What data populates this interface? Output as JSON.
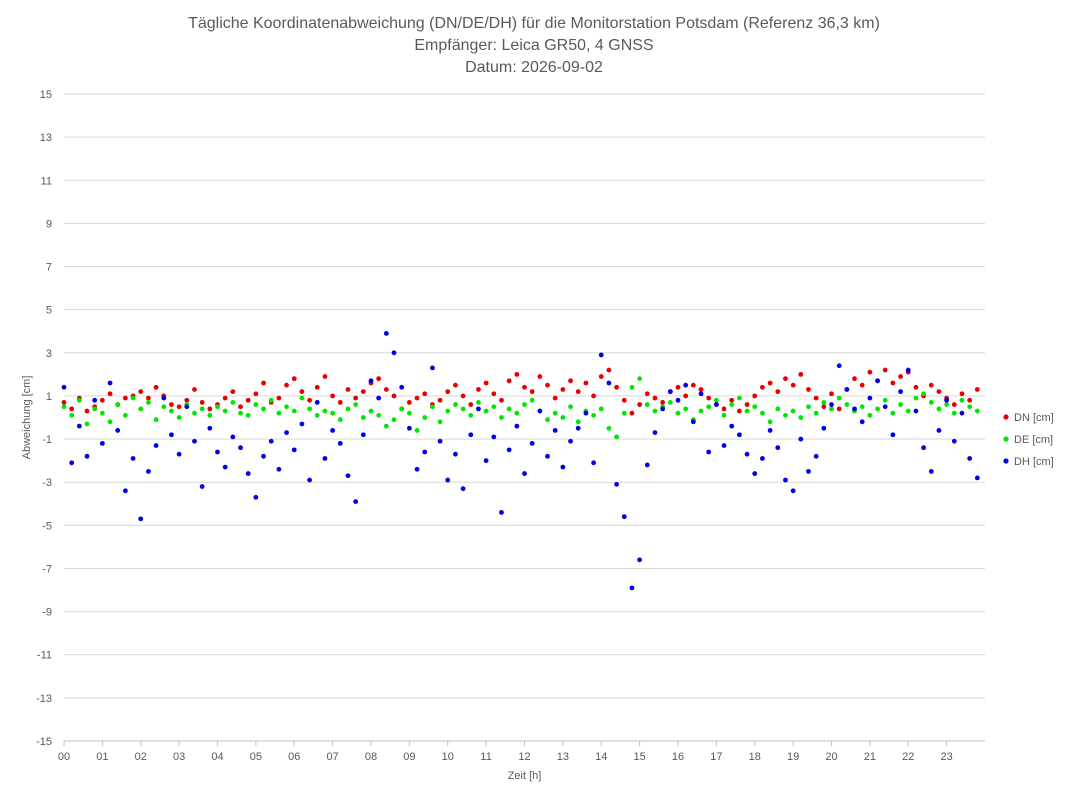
{
  "chart_data": {
    "type": "scatter",
    "title": [
      "Tägliche Koordinatenabweichung (DN/DE/DH) für die Monitorstation Potsdam (Referenz 36,3 km)",
      "Empfänger: Leica GR50, 4 GNSS",
      "Datum: 2026-09-02"
    ],
    "xlabel": "Zeit [h]",
    "ylabel": "Abweichung [cm]",
    "xlim": [
      0,
      24
    ],
    "ylim": [
      -15,
      15
    ],
    "x_ticks": [
      0,
      1,
      2,
      3,
      4,
      5,
      6,
      7,
      8,
      9,
      10,
      11,
      12,
      13,
      14,
      15,
      16,
      17,
      18,
      19,
      20,
      21,
      22,
      23
    ],
    "x_tick_labels": [
      "00",
      "01",
      "02",
      "03",
      "04",
      "05",
      "06",
      "07",
      "08",
      "09",
      "10",
      "11",
      "12",
      "13",
      "14",
      "15",
      "16",
      "17",
      "18",
      "19",
      "20",
      "21",
      "22",
      "23"
    ],
    "y_ticks": [
      15,
      13,
      11,
      9,
      7,
      5,
      3,
      1,
      -1,
      -3,
      -5,
      -7,
      -9,
      -11,
      -13,
      -15
    ],
    "y_tick_labels": [
      "15",
      "13",
      "11",
      "9",
      "7",
      "5",
      "3",
      "1",
      "-1",
      "-3",
      "-5",
      "-7",
      "-9",
      "-11",
      "-13",
      "-15"
    ],
    "grid": "horizontal",
    "legend_position": "right",
    "series": [
      {
        "name": "DN [cm]",
        "color": "#e60000",
        "x": [
          0.0,
          0.2,
          0.4,
          0.6,
          0.8,
          1.0,
          1.2,
          1.4,
          1.6,
          1.8,
          2.0,
          2.2,
          2.4,
          2.6,
          2.8,
          3.0,
          3.2,
          3.4,
          3.6,
          3.8,
          4.0,
          4.2,
          4.4,
          4.6,
          4.8,
          5.0,
          5.2,
          5.4,
          5.6,
          5.8,
          6.0,
          6.2,
          6.4,
          6.6,
          6.8,
          7.0,
          7.2,
          7.4,
          7.6,
          7.8,
          8.0,
          8.2,
          8.4,
          8.6,
          8.8,
          9.0,
          9.2,
          9.4,
          9.6,
          9.8,
          10.0,
          10.2,
          10.4,
          10.6,
          10.8,
          11.0,
          11.2,
          11.4,
          11.6,
          11.8,
          12.0,
          12.2,
          12.4,
          12.6,
          12.8,
          13.0,
          13.2,
          13.4,
          13.6,
          13.8,
          14.0,
          14.2,
          14.4,
          14.6,
          14.8,
          15.0,
          15.2,
          15.4,
          15.6,
          15.8,
          16.0,
          16.2,
          16.4,
          16.6,
          16.8,
          17.0,
          17.2,
          17.4,
          17.6,
          17.8,
          18.0,
          18.2,
          18.4,
          18.6,
          18.8,
          19.0,
          19.2,
          19.4,
          19.6,
          19.8,
          20.0,
          20.2,
          20.4,
          20.6,
          20.8,
          21.0,
          21.2,
          21.4,
          21.6,
          21.8,
          22.0,
          22.2,
          22.4,
          22.6,
          22.8,
          23.0,
          23.2,
          23.4,
          23.6,
          23.8
        ],
        "y": [
          0.7,
          0.4,
          0.9,
          0.3,
          0.5,
          0.8,
          1.1,
          0.6,
          0.9,
          1.0,
          1.2,
          0.9,
          1.4,
          1.0,
          0.6,
          0.5,
          0.8,
          1.3,
          0.7,
          0.4,
          0.6,
          0.9,
          1.2,
          0.5,
          0.8,
          1.1,
          1.6,
          0.7,
          0.9,
          1.5,
          1.8,
          1.2,
          0.8,
          1.4,
          1.9,
          1.0,
          0.7,
          1.3,
          0.9,
          1.2,
          1.6,
          1.8,
          1.3,
          1.0,
          0.4,
          0.7,
          0.9,
          1.1,
          0.6,
          0.8,
          1.2,
          1.5,
          1.0,
          0.6,
          1.3,
          1.6,
          1.1,
          0.8,
          1.7,
          2.0,
          1.4,
          1.2,
          1.9,
          1.5,
          0.9,
          1.3,
          1.7,
          1.2,
          1.6,
          1.0,
          1.9,
          2.2,
          1.4,
          0.8,
          0.2,
          0.6,
          1.1,
          0.9,
          0.7,
          1.2,
          1.4,
          1.0,
          1.5,
          1.3,
          0.9,
          0.6,
          0.4,
          0.8,
          0.3,
          0.6,
          1.0,
          1.4,
          1.6,
          1.2,
          1.8,
          1.5,
          2.0,
          1.3,
          0.9,
          0.5,
          1.1,
          0.4,
          1.3,
          1.8,
          1.5,
          2.1,
          1.7,
          2.2,
          1.6,
          1.9,
          2.1,
          1.4,
          1.0,
          1.5,
          1.2,
          0.9,
          0.6,
          1.1,
          0.8,
          1.3
        ]
      },
      {
        "name": "DE [cm]",
        "color": "#00e600",
        "x": [
          0.0,
          0.2,
          0.4,
          0.6,
          0.8,
          1.0,
          1.2,
          1.4,
          1.6,
          1.8,
          2.0,
          2.2,
          2.4,
          2.6,
          2.8,
          3.0,
          3.2,
          3.4,
          3.6,
          3.8,
          4.0,
          4.2,
          4.4,
          4.6,
          4.8,
          5.0,
          5.2,
          5.4,
          5.6,
          5.8,
          6.0,
          6.2,
          6.4,
          6.6,
          6.8,
          7.0,
          7.2,
          7.4,
          7.6,
          7.8,
          8.0,
          8.2,
          8.4,
          8.6,
          8.8,
          9.0,
          9.2,
          9.4,
          9.6,
          9.8,
          10.0,
          10.2,
          10.4,
          10.6,
          10.8,
          11.0,
          11.2,
          11.4,
          11.6,
          11.8,
          12.0,
          12.2,
          12.4,
          12.6,
          12.8,
          13.0,
          13.2,
          13.4,
          13.6,
          13.8,
          14.0,
          14.2,
          14.4,
          14.6,
          14.8,
          15.0,
          15.2,
          15.4,
          15.6,
          15.8,
          16.0,
          16.2,
          16.4,
          16.6,
          16.8,
          17.0,
          17.2,
          17.4,
          17.6,
          17.8,
          18.0,
          18.2,
          18.4,
          18.6,
          18.8,
          19.0,
          19.2,
          19.4,
          19.6,
          19.8,
          20.0,
          20.2,
          20.4,
          20.6,
          20.8,
          21.0,
          21.2,
          21.4,
          21.6,
          21.8,
          22.0,
          22.2,
          22.4,
          22.6,
          22.8,
          23.0,
          23.2,
          23.4,
          23.6,
          23.8
        ],
        "y": [
          0.5,
          0.1,
          0.8,
          -0.3,
          0.4,
          0.2,
          -0.2,
          0.6,
          0.1,
          0.9,
          0.4,
          0.7,
          -0.1,
          0.5,
          0.3,
          0.0,
          0.6,
          0.2,
          0.4,
          0.1,
          0.5,
          0.3,
          0.7,
          0.2,
          0.1,
          0.6,
          0.4,
          0.8,
          0.2,
          0.5,
          0.3,
          0.9,
          0.4,
          0.1,
          0.3,
          0.2,
          -0.1,
          0.4,
          0.6,
          0.0,
          0.3,
          0.1,
          -0.4,
          -0.1,
          0.4,
          0.2,
          -0.6,
          0.0,
          0.5,
          -0.2,
          0.3,
          0.6,
          0.4,
          0.1,
          0.7,
          0.3,
          0.5,
          0.0,
          0.4,
          0.2,
          0.6,
          0.8,
          0.3,
          -0.1,
          0.2,
          0.0,
          0.5,
          -0.2,
          0.3,
          0.1,
          0.4,
          -0.5,
          -0.9,
          0.2,
          1.4,
          1.8,
          0.6,
          0.3,
          0.5,
          0.7,
          0.2,
          0.4,
          -0.1,
          0.3,
          0.5,
          0.8,
          0.1,
          0.6,
          0.9,
          0.3,
          0.5,
          0.2,
          -0.2,
          0.4,
          0.1,
          0.3,
          0.0,
          0.5,
          0.2,
          0.7,
          0.4,
          0.9,
          0.6,
          0.3,
          0.5,
          0.1,
          0.4,
          0.8,
          0.2,
          0.6,
          0.3,
          0.9,
          1.1,
          0.7,
          0.4,
          0.6,
          0.2,
          0.8,
          0.5,
          0.3
        ]
      },
      {
        "name": "DH [cm]",
        "color": "#0000e6",
        "x": [
          0.0,
          0.2,
          0.4,
          0.6,
          0.8,
          1.0,
          1.2,
          1.4,
          1.6,
          1.8,
          2.0,
          2.2,
          2.4,
          2.6,
          2.8,
          3.0,
          3.2,
          3.4,
          3.6,
          3.8,
          4.0,
          4.2,
          4.4,
          4.6,
          4.8,
          5.0,
          5.2,
          5.4,
          5.6,
          5.8,
          6.0,
          6.2,
          6.4,
          6.6,
          6.8,
          7.0,
          7.2,
          7.4,
          7.6,
          7.8,
          8.0,
          8.2,
          8.4,
          8.6,
          8.8,
          9.0,
          9.2,
          9.4,
          9.6,
          9.8,
          10.0,
          10.2,
          10.4,
          10.6,
          10.8,
          11.0,
          11.2,
          11.4,
          11.6,
          11.8,
          12.0,
          12.2,
          12.4,
          12.6,
          12.8,
          13.0,
          13.2,
          13.4,
          13.6,
          13.8,
          14.0,
          14.2,
          14.4,
          14.6,
          14.8,
          15.0,
          15.2,
          15.4,
          15.6,
          15.8,
          16.0,
          16.2,
          16.4,
          16.6,
          16.8,
          17.0,
          17.2,
          17.4,
          17.6,
          17.8,
          18.0,
          18.2,
          18.4,
          18.6,
          18.8,
          19.0,
          19.2,
          19.4,
          19.6,
          19.8,
          20.0,
          20.2,
          20.4,
          20.6,
          20.8,
          21.0,
          21.2,
          21.4,
          21.6,
          21.8,
          22.0,
          22.2,
          22.4,
          22.6,
          22.8,
          23.0,
          23.2,
          23.4,
          23.6,
          23.8
        ],
        "y": [
          1.4,
          -2.1,
          -0.4,
          -1.8,
          0.8,
          -1.2,
          1.6,
          -0.6,
          -3.4,
          -1.9,
          -4.7,
          -2.5,
          -1.3,
          0.9,
          -0.8,
          -1.7,
          0.5,
          -1.1,
          -3.2,
          -0.5,
          -1.6,
          -2.3,
          -0.9,
          -1.4,
          -2.6,
          -3.7,
          -1.8,
          -1.1,
          -2.4,
          -0.7,
          -1.5,
          -0.3,
          -2.9,
          0.7,
          -1.9,
          -0.6,
          -1.2,
          -2.7,
          -3.9,
          -0.8,
          1.7,
          0.9,
          3.9,
          3.0,
          1.4,
          -0.5,
          -2.4,
          -1.6,
          2.3,
          -1.1,
          -2.9,
          -1.7,
          -3.3,
          -0.8,
          0.4,
          -2.0,
          -0.9,
          -4.4,
          -1.5,
          -0.4,
          -2.6,
          -1.2,
          0.3,
          -1.8,
          -0.6,
          -2.3,
          -1.1,
          -0.5,
          0.2,
          -2.1,
          2.9,
          1.6,
          -3.1,
          -4.6,
          -7.9,
          -6.6,
          -2.2,
          -0.7,
          0.4,
          1.2,
          0.8,
          1.5,
          -0.2,
          1.1,
          -1.6,
          0.6,
          -1.3,
          -0.4,
          -0.8,
          -1.7,
          -2.6,
          -1.9,
          -0.6,
          -1.4,
          -2.9,
          -3.4,
          -1.0,
          -2.5,
          -1.8,
          -0.5,
          0.6,
          2.4,
          1.3,
          0.4,
          -0.2,
          0.9,
          1.7,
          0.5,
          -0.8,
          1.2,
          2.2,
          0.3,
          -1.4,
          -2.5,
          -0.6,
          0.8,
          -1.1,
          0.2,
          -1.9,
          -2.8
        ]
      }
    ]
  }
}
